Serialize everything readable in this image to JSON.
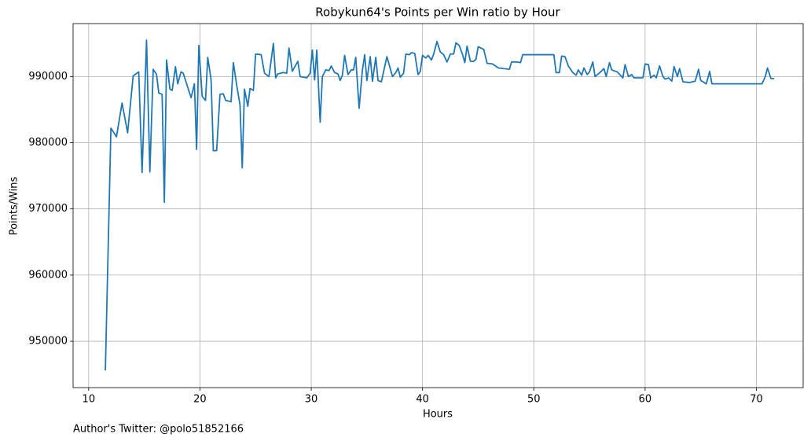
{
  "chart_data": {
    "type": "line",
    "title": "Robykun64's Points per Win ratio by Hour",
    "x_label": "Hours",
    "y_label": "Points/Wins",
    "annotation": "Author's Twitter: @polo51852166",
    "grid": true,
    "xlim": [
      8.6,
      74.2
    ],
    "ylim": [
      943000,
      998000
    ],
    "xticks": [
      10,
      20,
      30,
      40,
      50,
      60,
      70
    ],
    "yticks": [
      950000,
      960000,
      970000,
      980000,
      990000
    ],
    "x": [
      11.5,
      12.0,
      12.5,
      13.0,
      13.5,
      14.0,
      14.5,
      14.8,
      15.2,
      15.5,
      15.8,
      16.1,
      16.3,
      16.6,
      16.8,
      17.0,
      17.3,
      17.5,
      17.8,
      18.0,
      18.3,
      18.5,
      18.8,
      19.2,
      19.5,
      19.7,
      19.9,
      20.2,
      20.5,
      20.7,
      21.0,
      21.2,
      21.5,
      21.8,
      22.1,
      22.3,
      22.8,
      23.0,
      23.3,
      23.6,
      23.8,
      24.0,
      24.3,
      24.5,
      24.8,
      25.0,
      25.5,
      25.8,
      26.2,
      26.6,
      26.8,
      27.0,
      27.5,
      27.8,
      28.0,
      28.3,
      28.8,
      29.0,
      29.6,
      29.9,
      30.1,
      30.3,
      30.5,
      30.8,
      31.0,
      31.3,
      31.6,
      31.8,
      32.1,
      32.4,
      32.6,
      32.8,
      33.0,
      33.3,
      33.6,
      33.8,
      34.0,
      34.3,
      34.6,
      34.8,
      35.0,
      35.3,
      35.5,
      35.8,
      36.0,
      36.3,
      36.8,
      37.3,
      37.6,
      37.8,
      38.0,
      38.3,
      38.5,
      38.8,
      39.0,
      39.3,
      39.6,
      39.8,
      40.0,
      40.3,
      40.5,
      40.8,
      41.0,
      41.3,
      41.6,
      41.9,
      42.2,
      42.5,
      42.8,
      43.0,
      43.3,
      43.6,
      43.8,
      44.0,
      44.3,
      44.6,
      44.8,
      45.0,
      45.5,
      45.8,
      46.3,
      46.8,
      47.3,
      47.8,
      48.0,
      48.5,
      48.8,
      49.0,
      51.8,
      52.0,
      52.3,
      52.5,
      52.8,
      53.1,
      53.5,
      53.8,
      54.0,
      54.3,
      54.5,
      54.8,
      55.0,
      55.3,
      55.5,
      55.8,
      56.0,
      56.3,
      56.5,
      56.8,
      57.0,
      57.5,
      58.0,
      58.2,
      58.5,
      58.8,
      59.0,
      59.8,
      60.0,
      60.3,
      60.5,
      60.8,
      61.0,
      61.3,
      61.6,
      61.8,
      62.1,
      62.4,
      62.6,
      62.9,
      63.1,
      63.4,
      64.0,
      64.5,
      64.8,
      65.0,
      65.5,
      65.8,
      66.0,
      70.5,
      70.8,
      71.0,
      71.3,
      71.6
    ],
    "series": [
      {
        "name": "Points/Wins",
        "color": "#1f77b4",
        "values": [
          945600,
          982200,
          980900,
          986000,
          981500,
          990100,
          990700,
          975500,
          995500,
          975600,
          991100,
          990300,
          987500,
          987300,
          971000,
          992500,
          988100,
          987900,
          991500,
          988900,
          990700,
          990500,
          988900,
          986800,
          988900,
          979000,
          994700,
          987000,
          986400,
          992900,
          989500,
          978800,
          978800,
          987300,
          987400,
          986400,
          986200,
          992100,
          988700,
          985700,
          976200,
          988100,
          985500,
          988200,
          987900,
          993400,
          993300,
          990500,
          990000,
          995000,
          989800,
          990400,
          990600,
          990500,
          994300,
          990800,
          992300,
          990000,
          989800,
          990500,
          994000,
          989500,
          994000,
          983100,
          990000,
          991000,
          990900,
          991600,
          990600,
          990400,
          989400,
          990200,
          993200,
          990300,
          991000,
          991000,
          992900,
          985200,
          991000,
          993300,
          989400,
          993000,
          989300,
          992900,
          989400,
          989200,
          993000,
          990000,
          990600,
          991300,
          989900,
          990500,
          993400,
          993300,
          993600,
          993500,
          990300,
          990800,
          993200,
          992800,
          993200,
          992500,
          993400,
          995300,
          993700,
          993300,
          992200,
          993400,
          993400,
          995100,
          994700,
          993300,
          992100,
          994600,
          992300,
          992300,
          992600,
          994500,
          994100,
          992000,
          991900,
          991300,
          991200,
          991100,
          992200,
          992200,
          992100,
          993300,
          993300,
          990600,
          990600,
          993100,
          993000,
          991600,
          990600,
          990200,
          991000,
          990200,
          991300,
          990300,
          990700,
          992200,
          990000,
          990400,
          990700,
          991200,
          990000,
          992100,
          991000,
          990700,
          989800,
          991800,
          990000,
          990300,
          989800,
          989800,
          991900,
          991800,
          989800,
          990200,
          989800,
          991600,
          990000,
          989600,
          989800,
          989300,
          991500,
          990000,
          991200,
          989200,
          989100,
          989300,
          991100,
          989400,
          988900,
          990800,
          988900,
          988900,
          990000,
          991300,
          989700,
          989700
        ]
      }
    ]
  }
}
